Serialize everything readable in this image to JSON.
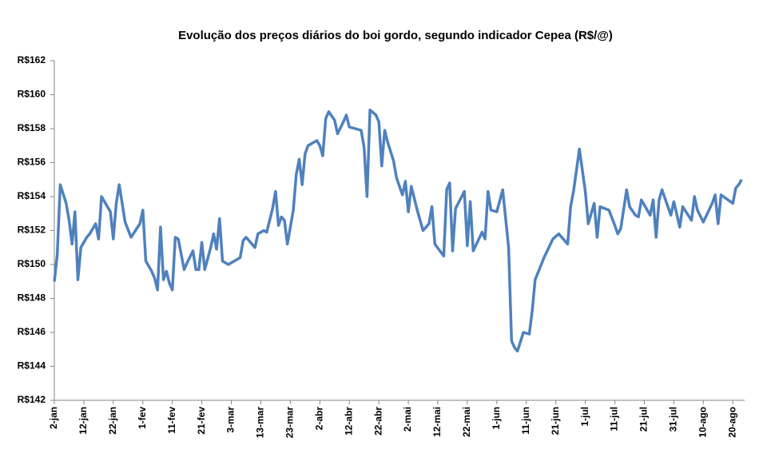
{
  "chart_data": {
    "type": "line",
    "title": "Evolução dos preços diários do boi gordo,  segundo indicador Cepea (R$/@)",
    "color": "#4f81bd",
    "xlim": [
      0,
      234
    ],
    "xticks": [
      {
        "value": 0,
        "label": "2-jan"
      },
      {
        "value": 10,
        "label": "12-jan"
      },
      {
        "value": 20,
        "label": "22-jan"
      },
      {
        "value": 30,
        "label": "1-fev"
      },
      {
        "value": 40,
        "label": "11-fev"
      },
      {
        "value": 50,
        "label": "21-fev"
      },
      {
        "value": 60,
        "label": "3-mar"
      },
      {
        "value": 70,
        "label": "13-mar"
      },
      {
        "value": 80,
        "label": "23-mar"
      },
      {
        "value": 90,
        "label": "2-abr"
      },
      {
        "value": 100,
        "label": "12-abr"
      },
      {
        "value": 110,
        "label": "22-abr"
      },
      {
        "value": 120,
        "label": "2-mai"
      },
      {
        "value": 130,
        "label": "12-mai"
      },
      {
        "value": 140,
        "label": "22-mai"
      },
      {
        "value": 150,
        "label": "1-jun"
      },
      {
        "value": 160,
        "label": "11-jun"
      },
      {
        "value": 170,
        "label": "21-jun"
      },
      {
        "value": 180,
        "label": "1-jul"
      },
      {
        "value": 190,
        "label": "11-jul"
      },
      {
        "value": 200,
        "label": "21-jul"
      },
      {
        "value": 210,
        "label": "31-jul"
      },
      {
        "value": 220,
        "label": "10-ago"
      },
      {
        "value": 230,
        "label": "20-ago"
      }
    ],
    "ylim": [
      142,
      162
    ],
    "yticks": [
      {
        "value": 142,
        "label": "R$142"
      },
      {
        "value": 144,
        "label": "R$144"
      },
      {
        "value": 146,
        "label": "R$146"
      },
      {
        "value": 148,
        "label": "R$148"
      },
      {
        "value": 150,
        "label": "R$150"
      },
      {
        "value": 152,
        "label": "R$152"
      },
      {
        "value": 154,
        "label": "R$154"
      },
      {
        "value": 156,
        "label": "R$156"
      },
      {
        "value": 158,
        "label": "R$158"
      },
      {
        "value": 160,
        "label": "R$160"
      },
      {
        "value": 162,
        "label": "R$162"
      }
    ],
    "x": [
      0,
      1,
      2,
      4,
      5,
      6,
      7,
      8,
      9,
      11,
      12,
      14,
      15,
      16,
      19,
      20,
      21,
      22,
      24,
      26,
      29,
      30,
      31,
      33,
      34,
      35,
      36,
      37,
      38,
      39,
      40,
      41,
      42,
      44,
      45,
      47,
      48,
      49,
      50,
      51,
      53,
      54,
      55,
      56,
      57,
      59,
      63,
      64,
      65,
      68,
      69,
      71,
      72,
      74,
      75,
      76,
      77,
      78,
      79,
      81,
      82,
      83,
      84,
      85,
      86,
      89,
      90,
      91,
      92,
      93,
      95,
      96,
      98,
      99,
      100,
      102,
      104,
      105,
      106,
      107,
      109,
      110,
      111,
      112,
      113,
      115,
      116,
      118,
      119,
      120,
      121,
      123,
      125,
      126,
      127,
      128,
      129,
      132,
      133,
      134,
      135,
      136,
      139,
      140,
      141,
      142,
      145,
      146,
      147,
      148,
      150,
      152,
      154,
      155,
      156,
      157,
      159,
      161,
      162,
      163,
      166,
      169,
      171,
      174,
      175,
      176,
      178,
      180,
      181,
      183,
      184,
      185,
      188,
      190,
      191,
      192,
      194,
      195,
      197,
      198,
      199,
      202,
      203,
      204,
      205,
      206,
      209,
      210,
      212,
      213,
      216,
      217,
      218,
      220,
      223,
      224,
      225,
      226,
      230,
      231,
      232,
      233
    ],
    "values": [
      149.0,
      150.6,
      154.7,
      153.6,
      152.6,
      151.2,
      153.1,
      149.1,
      151.0,
      151.6,
      151.8,
      152.4,
      151.5,
      154.0,
      153.1,
      151.5,
      153.6,
      154.7,
      152.5,
      151.6,
      152.4,
      153.2,
      150.2,
      149.6,
      149.2,
      148.5,
      152.2,
      149.1,
      149.6,
      148.9,
      148.5,
      151.6,
      151.5,
      149.7,
      150.1,
      150.8,
      149.7,
      149.7,
      151.3,
      149.7,
      151.0,
      151.8,
      150.9,
      152.7,
      150.2,
      150.0,
      150.4,
      151.4,
      151.6,
      151.0,
      151.8,
      152.0,
      151.9,
      153.3,
      154.3,
      152.3,
      152.8,
      152.6,
      151.2,
      153.2,
      155.3,
      156.2,
      154.7,
      156.5,
      157.0,
      157.3,
      157.0,
      156.4,
      158.6,
      159.0,
      158.5,
      157.7,
      158.4,
      158.8,
      158.1,
      158.0,
      157.9,
      156.9,
      154.0,
      159.1,
      158.8,
      158.4,
      155.8,
      157.9,
      157.2,
      156.1,
      155.1,
      154.1,
      154.9,
      153.1,
      154.6,
      153.2,
      152.0,
      152.2,
      152.4,
      153.4,
      151.2,
      150.5,
      154.4,
      154.8,
      150.8,
      153.3,
      154.3,
      151.1,
      153.7,
      150.8,
      151.9,
      151.5,
      154.3,
      153.2,
      153.1,
      154.4,
      151.0,
      145.5,
      145.1,
      144.9,
      146.0,
      145.9,
      147.3,
      149.1,
      150.4,
      151.5,
      151.8,
      151.2,
      153.4,
      154.3,
      156.8,
      154.3,
      152.4,
      153.6,
      151.6,
      153.4,
      153.2,
      152.3,
      151.8,
      152.1,
      154.4,
      153.4,
      152.9,
      152.8,
      153.8,
      152.9,
      153.8,
      151.6,
      153.8,
      154.4,
      152.9,
      153.7,
      152.2,
      153.4,
      152.6,
      154.0,
      153.2,
      152.5,
      153.6,
      154.1,
      152.4,
      154.1,
      153.6,
      154.5,
      154.7,
      155.0
    ]
  }
}
